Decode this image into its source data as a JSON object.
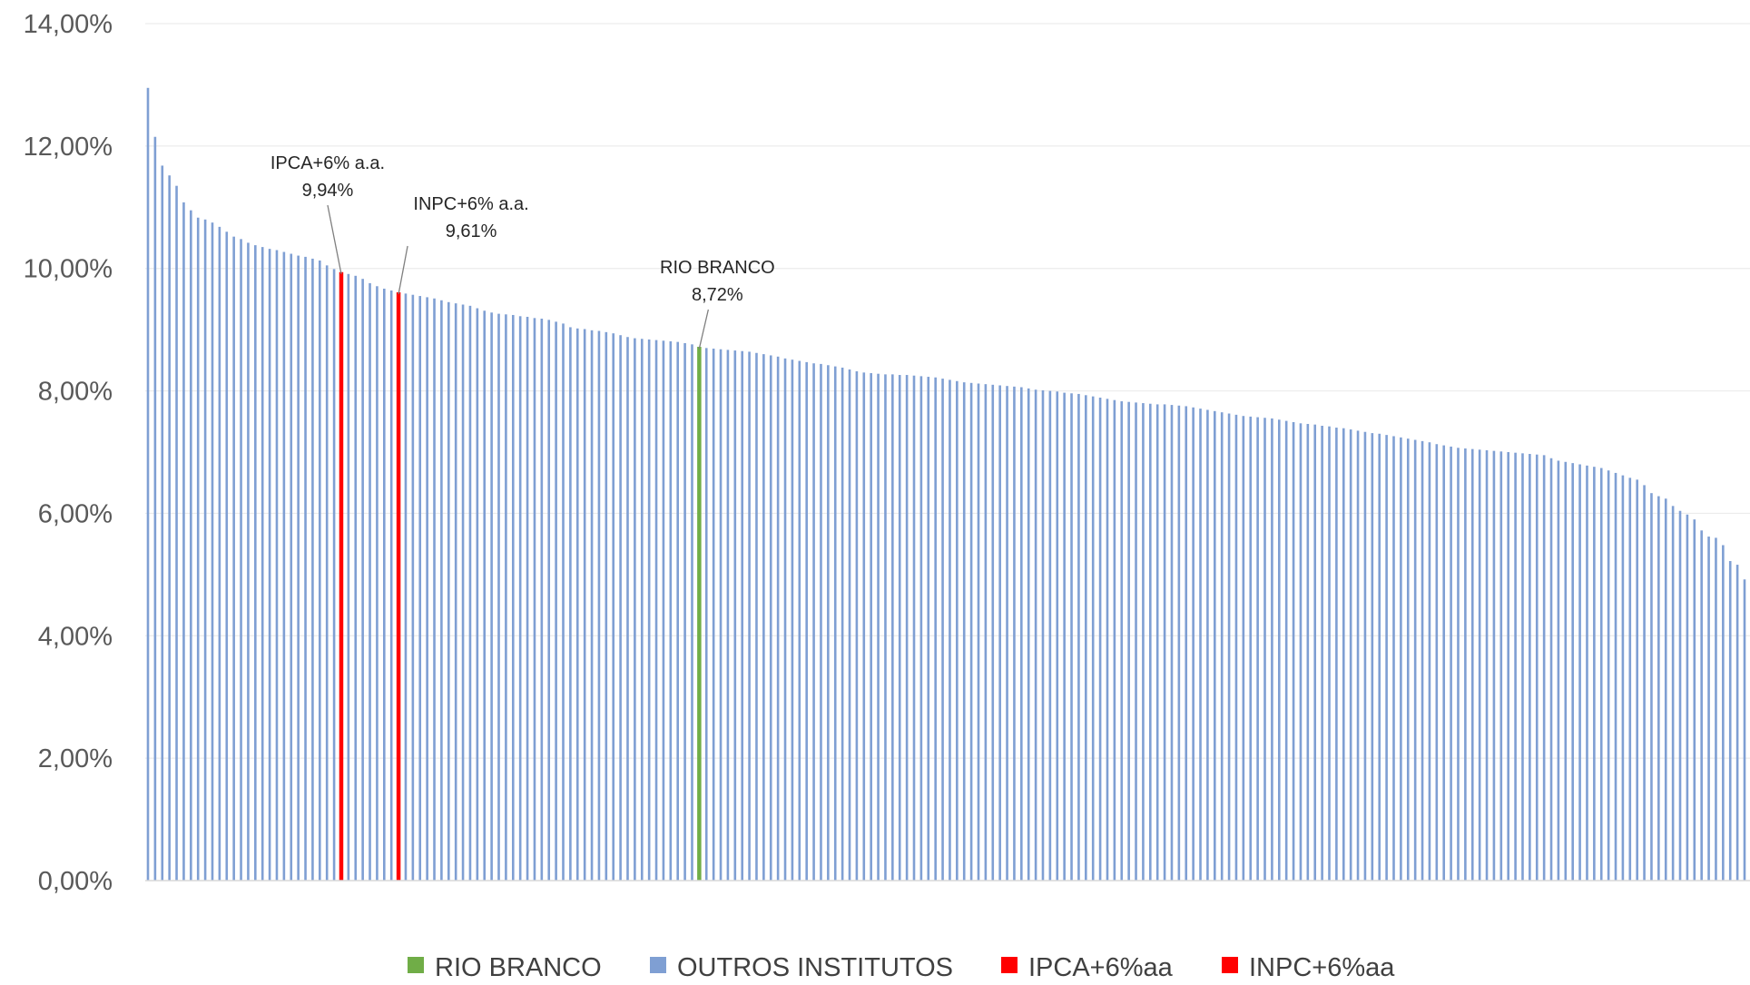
{
  "chart_data": {
    "type": "bar",
    "title": "",
    "xlabel": "",
    "ylabel": "",
    "ylim": [
      0,
      14
    ],
    "y_ticks": [
      "0,00%",
      "2,00%",
      "4,00%",
      "6,00%",
      "8,00%",
      "10,00%",
      "12,00%",
      "14,00%"
    ],
    "gridlines": true,
    "legend_position": "bottom",
    "colors": {
      "RIO BRANCO": "#70AD47",
      "OUTROS INSTITUTOS": "#7F9FD3",
      "IPCA+6%aa": "#FF0000",
      "INPC+6%aa": "#FF0000"
    },
    "legend": [
      {
        "label": "RIO BRANCO",
        "color": "#70AD47"
      },
      {
        "label": "OUTROS INSTITUTOS",
        "color": "#7F9FD3"
      },
      {
        "label": "IPCA+6%aa",
        "color": "#FF0000"
      },
      {
        "label": "INPC+6%aa",
        "color": "#FF0000"
      }
    ],
    "annotations": [
      {
        "series": "IPCA+6%aa",
        "line1": "IPCA+6% a.a.",
        "line2": "9,94%",
        "value": 9.94
      },
      {
        "series": "INPC+6%aa",
        "line1": "INPC+6% a.a.",
        "line2": "9,61%",
        "value": 9.61
      },
      {
        "series": "RIO BRANCO",
        "line1": "RIO BRANCO",
        "line2": "8,72%",
        "value": 8.72
      }
    ],
    "values": [
      12.95,
      12.15,
      11.68,
      11.52,
      11.35,
      11.08,
      10.95,
      10.83,
      10.8,
      10.75,
      10.68,
      10.6,
      10.52,
      10.48,
      10.42,
      10.38,
      10.35,
      10.32,
      10.3,
      10.27,
      10.24,
      10.21,
      10.19,
      10.16,
      10.13,
      10.05,
      9.99,
      9.94,
      9.91,
      9.88,
      9.83,
      9.76,
      9.71,
      9.67,
      9.64,
      9.61,
      9.59,
      9.57,
      9.55,
      9.53,
      9.51,
      9.48,
      9.45,
      9.43,
      9.41,
      9.39,
      9.35,
      9.31,
      9.28,
      9.26,
      9.25,
      9.24,
      9.22,
      9.21,
      9.19,
      9.18,
      9.16,
      9.13,
      9.1,
      9.04,
      9.02,
      9.01,
      8.99,
      8.98,
      8.96,
      8.94,
      8.91,
      8.88,
      8.86,
      8.85,
      8.84,
      8.83,
      8.82,
      8.81,
      8.8,
      8.78,
      8.76,
      8.72,
      8.7,
      8.69,
      8.68,
      8.67,
      8.66,
      8.65,
      8.64,
      8.62,
      8.6,
      8.58,
      8.56,
      8.53,
      8.51,
      8.49,
      8.47,
      8.45,
      8.44,
      8.42,
      8.4,
      8.38,
      8.35,
      8.32,
      8.3,
      8.29,
      8.28,
      8.27,
      8.27,
      8.26,
      8.26,
      8.25,
      8.24,
      8.23,
      8.22,
      8.2,
      8.18,
      8.16,
      8.14,
      8.13,
      8.12,
      8.11,
      8.1,
      8.09,
      8.08,
      8.07,
      8.06,
      8.04,
      8.02,
      8.01,
      8.0,
      7.99,
      7.97,
      7.96,
      7.95,
      7.93,
      7.91,
      7.89,
      7.87,
      7.85,
      7.83,
      7.82,
      7.81,
      7.8,
      7.79,
      7.78,
      7.78,
      7.77,
      7.76,
      7.75,
      7.73,
      7.71,
      7.69,
      7.67,
      7.65,
      7.63,
      7.61,
      7.59,
      7.58,
      7.57,
      7.56,
      7.55,
      7.53,
      7.51,
      7.49,
      7.47,
      7.46,
      7.45,
      7.43,
      7.42,
      7.4,
      7.39,
      7.37,
      7.35,
      7.33,
      7.31,
      7.3,
      7.28,
      7.26,
      7.24,
      7.22,
      7.2,
      7.18,
      7.16,
      7.13,
      7.11,
      7.09,
      7.07,
      7.06,
      7.05,
      7.04,
      7.03,
      7.02,
      7.01,
      7.0,
      6.99,
      6.98,
      6.97,
      6.96,
      6.95,
      6.9,
      6.86,
      6.84,
      6.82,
      6.8,
      6.78,
      6.76,
      6.74,
      6.7,
      6.66,
      6.62,
      6.58,
      6.55,
      6.46,
      6.33,
      6.28,
      6.24,
      6.12,
      6.04,
      5.98,
      5.9,
      5.72,
      5.62,
      5.6,
      5.48,
      5.22,
      5.16,
      4.92
    ],
    "highlight_index": {
      "IPCA+6%aa": 27,
      "INPC+6%aa": 35,
      "RIO BRANCO": 77
    }
  }
}
